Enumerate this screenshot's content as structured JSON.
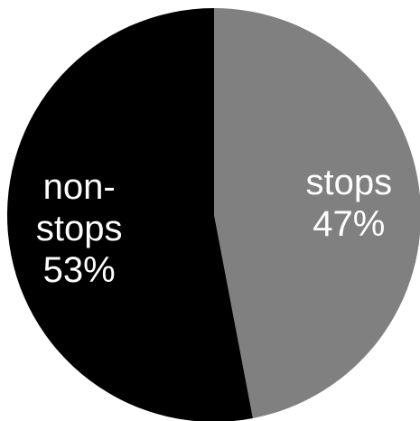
{
  "chart_data": {
    "type": "pie",
    "start_angle_deg": 0,
    "direction": "clockwise",
    "slices": [
      {
        "label_lines": [
          "stops",
          "47%"
        ],
        "category": "stops",
        "value": 47,
        "color": "#808080"
      },
      {
        "label_lines": [
          "non-",
          "stops",
          "53%"
        ],
        "category": "non-stops",
        "value": 53,
        "color": "#000000"
      }
    ],
    "legend": "none"
  }
}
